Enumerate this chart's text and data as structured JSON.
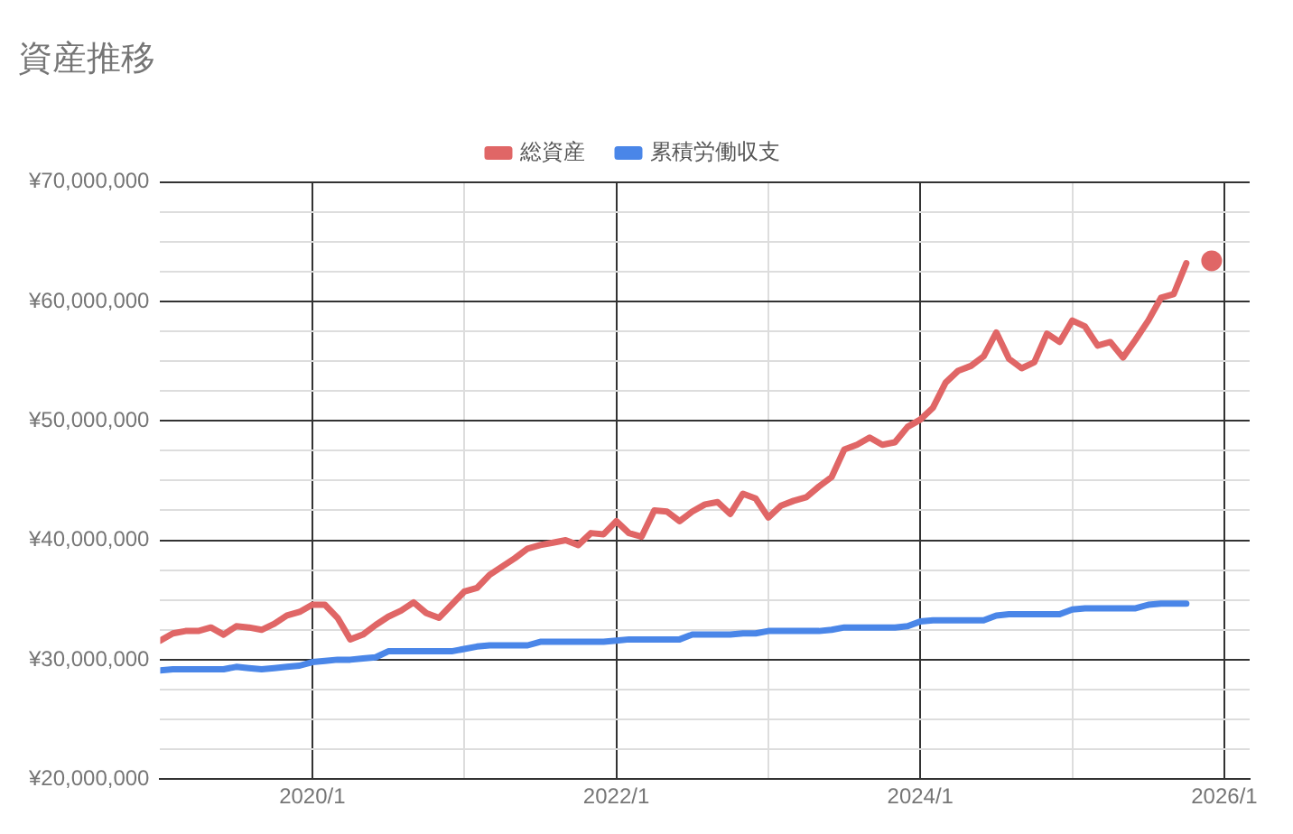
{
  "chart_data": {
    "type": "line",
    "title": "資産推移",
    "legend": "top",
    "grid": true,
    "x": [
      "2019-01",
      "2019-02",
      "2019-03",
      "2019-04",
      "2019-05",
      "2019-06",
      "2019-07",
      "2019-08",
      "2019-09",
      "2019-10",
      "2019-11",
      "2019-12",
      "2020-01",
      "2020-02",
      "2020-03",
      "2020-04",
      "2020-05",
      "2020-06",
      "2020-07",
      "2020-08",
      "2020-09",
      "2020-10",
      "2020-11",
      "2020-12",
      "2021-01",
      "2021-02",
      "2021-03",
      "2021-04",
      "2021-05",
      "2021-06",
      "2021-07",
      "2021-08",
      "2021-09",
      "2021-10",
      "2021-11",
      "2021-12",
      "2022-01",
      "2022-02",
      "2022-03",
      "2022-04",
      "2022-05",
      "2022-06",
      "2022-07",
      "2022-08",
      "2022-09",
      "2022-10",
      "2022-11",
      "2022-12",
      "2023-01",
      "2023-02",
      "2023-03",
      "2023-04",
      "2023-05",
      "2023-06",
      "2023-07",
      "2023-08",
      "2023-09",
      "2023-10",
      "2023-11",
      "2023-12",
      "2024-01",
      "2024-02",
      "2024-03",
      "2024-04",
      "2024-05",
      "2024-06",
      "2024-07",
      "2024-08",
      "2024-09",
      "2024-10",
      "2024-11",
      "2024-12",
      "2025-01",
      "2025-02",
      "2025-03",
      "2025-04",
      "2025-05",
      "2025-06",
      "2025-07",
      "2025-08",
      "2025-09",
      "2025-10",
      "2025-11",
      "2025-12"
    ],
    "xlim": [
      "2019-01",
      "2026-03"
    ],
    "xticks": [
      {
        "value": "2020-01",
        "label": "2020/1"
      },
      {
        "value": "2021-01",
        "label": null
      },
      {
        "value": "2022-01",
        "label": "2022/1"
      },
      {
        "value": "2023-01",
        "label": null
      },
      {
        "value": "2024-01",
        "label": "2024/1"
      },
      {
        "value": "2025-01",
        "label": null
      },
      {
        "value": "2026-01",
        "label": "2026/1"
      }
    ],
    "ylim": [
      20000000,
      70000000
    ],
    "yticks": [
      {
        "value": 20000000,
        "label": "¥20,000,000"
      },
      {
        "value": 22500000,
        "label": null
      },
      {
        "value": 25000000,
        "label": null
      },
      {
        "value": 27500000,
        "label": null
      },
      {
        "value": 30000000,
        "label": "¥30,000,000"
      },
      {
        "value": 32500000,
        "label": null
      },
      {
        "value": 35000000,
        "label": null
      },
      {
        "value": 37500000,
        "label": null
      },
      {
        "value": 40000000,
        "label": "¥40,000,000"
      },
      {
        "value": 42500000,
        "label": null
      },
      {
        "value": 45000000,
        "label": null
      },
      {
        "value": 47500000,
        "label": null
      },
      {
        "value": 50000000,
        "label": "¥50,000,000"
      },
      {
        "value": 52500000,
        "label": null
      },
      {
        "value": 55000000,
        "label": null
      },
      {
        "value": 57500000,
        "label": null
      },
      {
        "value": 60000000,
        "label": "¥60,000,000"
      },
      {
        "value": 62500000,
        "label": null
      },
      {
        "value": 65000000,
        "label": null
      },
      {
        "value": 67500000,
        "label": null
      },
      {
        "value": 70000000,
        "label": "¥70,000,000"
      }
    ],
    "series": [
      {
        "name": "総資産",
        "color": "#e06666",
        "values": [
          31600000,
          32200000,
          32400000,
          32400000,
          32700000,
          32100000,
          32800000,
          32700000,
          32500000,
          33000000,
          33700000,
          34000000,
          34600000,
          34600000,
          33500000,
          31700000,
          32100000,
          32900000,
          33600000,
          34100000,
          34800000,
          33900000,
          33500000,
          34600000,
          35700000,
          36000000,
          37100000,
          37800000,
          38500000,
          39300000,
          39600000,
          39800000,
          40000000,
          39600000,
          40600000,
          40500000,
          41600000,
          40600000,
          40300000,
          42500000,
          42400000,
          41600000,
          42400000,
          43000000,
          43200000,
          42200000,
          43900000,
          43500000,
          41900000,
          42900000,
          43300000,
          43600000,
          44500000,
          45300000,
          47600000,
          48000000,
          48600000,
          48000000,
          48200000,
          49500000,
          50100000,
          51100000,
          53200000,
          54200000,
          54600000,
          55400000,
          57400000,
          55200000,
          54400000,
          54900000,
          57300000,
          56600000,
          58400000,
          57900000,
          56300000,
          56600000,
          55300000,
          56800000,
          58400000,
          60300000,
          60600000,
          63200000,
          null,
          63400000
        ]
      },
      {
        "name": "累積労働収支",
        "color": "#4a86e8",
        "values": [
          29100000,
          29200000,
          29200000,
          29200000,
          29200000,
          29200000,
          29400000,
          29300000,
          29200000,
          29300000,
          29400000,
          29500000,
          29800000,
          29900000,
          30000000,
          30000000,
          30100000,
          30200000,
          30700000,
          30700000,
          30700000,
          30700000,
          30700000,
          30700000,
          30900000,
          31100000,
          31200000,
          31200000,
          31200000,
          31200000,
          31500000,
          31500000,
          31500000,
          31500000,
          31500000,
          31500000,
          31600000,
          31700000,
          31700000,
          31700000,
          31700000,
          31700000,
          32100000,
          32100000,
          32100000,
          32100000,
          32200000,
          32200000,
          32400000,
          32400000,
          32400000,
          32400000,
          32400000,
          32500000,
          32700000,
          32700000,
          32700000,
          32700000,
          32700000,
          32800000,
          33200000,
          33300000,
          33300000,
          33300000,
          33300000,
          33300000,
          33700000,
          33800000,
          33800000,
          33800000,
          33800000,
          33800000,
          34200000,
          34300000,
          34300000,
          34300000,
          34300000,
          34300000,
          34600000,
          34700000,
          34700000,
          34700000,
          null,
          null
        ]
      }
    ]
  }
}
